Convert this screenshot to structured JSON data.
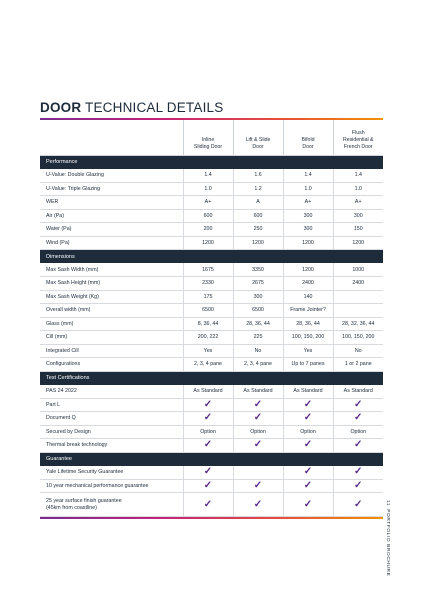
{
  "title": {
    "bold": "DOOR",
    "light": " TECHNICAL DETAILS"
  },
  "columns": [
    "Inline\nSliding Door",
    "Lift & Slide\nDoor",
    "Bifold\nDoor",
    "Flush\nResidential &\nFrench Door"
  ],
  "sections": [
    {
      "name": "Performance",
      "rows": [
        {
          "label": "U-Value: Double Glazing",
          "values": [
            "1.4",
            "1.6",
            "1.4",
            "1.4"
          ]
        },
        {
          "label": "U-Value: Triple Glazing",
          "values": [
            "1.0",
            "1.2",
            "1.0",
            "1.0"
          ]
        },
        {
          "label": "WER",
          "values": [
            "A+",
            "A",
            "A+",
            "A+"
          ]
        },
        {
          "label": "Air (Pa)",
          "values": [
            "600",
            "600",
            "300",
            "300"
          ]
        },
        {
          "label": "Water (Pa)",
          "values": [
            "200",
            "250",
            "300",
            "150"
          ]
        },
        {
          "label": "Wind (Pa)",
          "values": [
            "1200",
            "1200",
            "1200",
            "1200"
          ]
        }
      ]
    },
    {
      "name": "Dimensions",
      "rows": [
        {
          "label": "Max Sash Width (mm)",
          "values": [
            "1675",
            "3350",
            "1200",
            "1000"
          ]
        },
        {
          "label": "Max Sash Height (mm)",
          "values": [
            "2330",
            "2675",
            "2400",
            "2400"
          ]
        },
        {
          "label": "Max Sash Weight (Kg)",
          "values": [
            "175",
            "300",
            "140",
            ""
          ]
        },
        {
          "label": "Overall width (mm)",
          "values": [
            "6500",
            "6500",
            "Frame Jointer?",
            ""
          ]
        },
        {
          "label": "Glass (mm)",
          "values": [
            "8, 36, 44",
            "28, 36, 44",
            "28, 36, 44",
            "28, 32, 36, 44"
          ]
        },
        {
          "label": "Cill (mm)",
          "values": [
            "200, 222",
            "225",
            "100, 150, 200",
            "100, 150, 200"
          ]
        },
        {
          "label": "Integrated Cill",
          "values": [
            "Yes",
            "No",
            "Yes",
            "No"
          ]
        },
        {
          "label": "Configurations",
          "values": [
            "2, 3, 4 pane",
            "2, 3, 4 pane",
            "Up to 7 panes",
            "1 or 2 pane"
          ]
        }
      ]
    },
    {
      "name": "Test Certifications",
      "rows": [
        {
          "label": "PAS 24 2022",
          "values": [
            "As Standard",
            "As Standard",
            "As Standard",
            "As Standard"
          ]
        },
        {
          "label": "Part L",
          "values": [
            "✓",
            "✓",
            "✓",
            "✓"
          ]
        },
        {
          "label": "Document Q",
          "values": [
            "✓",
            "✓",
            "✓",
            "✓"
          ]
        },
        {
          "label": "Secured by Design",
          "values": [
            "Option",
            "Option",
            "Option",
            "Option"
          ]
        },
        {
          "label": "Thermal break technology",
          "values": [
            "✓",
            "✓",
            "✓",
            "✓"
          ]
        }
      ]
    },
    {
      "name": "Guarantee",
      "rows": [
        {
          "label": "Yale Lifetime Security Guarantee",
          "values": [
            "✓",
            "",
            "✓",
            "✓"
          ]
        },
        {
          "label": "10 year mechanical performance guarantee",
          "values": [
            "✓",
            "✓",
            "✓",
            "✓"
          ]
        },
        {
          "label": "25 year surface finish guarantee\n(45km from coastline)",
          "values": [
            "✓",
            "✓",
            "✓",
            "✓"
          ],
          "tall": true
        }
      ]
    }
  ],
  "footer": {
    "page": "11",
    "text": "PORTFOLIO BROCHURE"
  },
  "colors": {
    "header_bg": "#1d2b3a",
    "tick": "#5a2a8a",
    "gradient": [
      "#7b2b8e",
      "#c4227a",
      "#e84d3c",
      "#f29100"
    ]
  }
}
